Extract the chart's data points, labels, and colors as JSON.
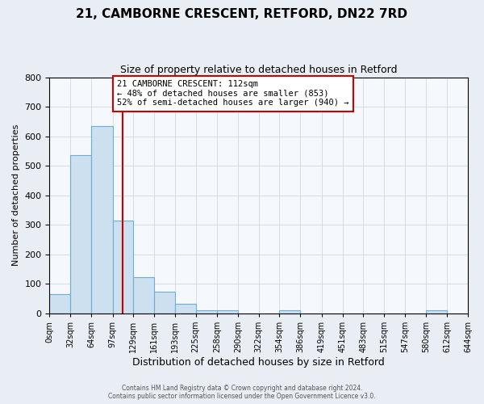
{
  "title": "21, CAMBORNE CRESCENT, RETFORD, DN22 7RD",
  "subtitle": "Size of property relative to detached houses in Retford",
  "xlabel": "Distribution of detached houses by size in Retford",
  "ylabel": "Number of detached properties",
  "bin_edges": [
    0,
    32,
    64,
    97,
    129,
    161,
    193,
    225,
    258,
    290,
    322,
    354,
    386,
    419,
    451,
    483,
    515,
    547,
    580,
    612,
    644
  ],
  "bin_labels": [
    "0sqm",
    "32sqm",
    "64sqm",
    "97sqm",
    "129sqm",
    "161sqm",
    "193sqm",
    "225sqm",
    "258sqm",
    "290sqm",
    "322sqm",
    "354sqm",
    "386sqm",
    "419sqm",
    "451sqm",
    "483sqm",
    "515sqm",
    "547sqm",
    "580sqm",
    "612sqm",
    "644sqm"
  ],
  "bar_heights": [
    65,
    535,
    635,
    315,
    122,
    75,
    32,
    12,
    10,
    0,
    0,
    10,
    0,
    0,
    0,
    0,
    0,
    0,
    10,
    0
  ],
  "bar_color": "#cce0f0",
  "bar_edge_color": "#6aafd6",
  "vline_x": 112,
  "vline_color": "#cc0000",
  "annotation_text": "21 CAMBORNE CRESCENT: 112sqm\n← 48% of detached houses are smaller (853)\n52% of semi-detached houses are larger (940) →",
  "annotation_box_color": "white",
  "annotation_box_edge_color": "#cc0000",
  "ylim": [
    0,
    800
  ],
  "yticks": [
    0,
    100,
    200,
    300,
    400,
    500,
    600,
    700,
    800
  ],
  "footer_line1": "Contains HM Land Registry data © Crown copyright and database right 2024.",
  "footer_line2": "Contains public sector information licensed under the Open Government Licence v3.0.",
  "background_color": "#e8eef4",
  "plot_background_color": "#f5f8fc",
  "grid_color": "#c8d4de"
}
